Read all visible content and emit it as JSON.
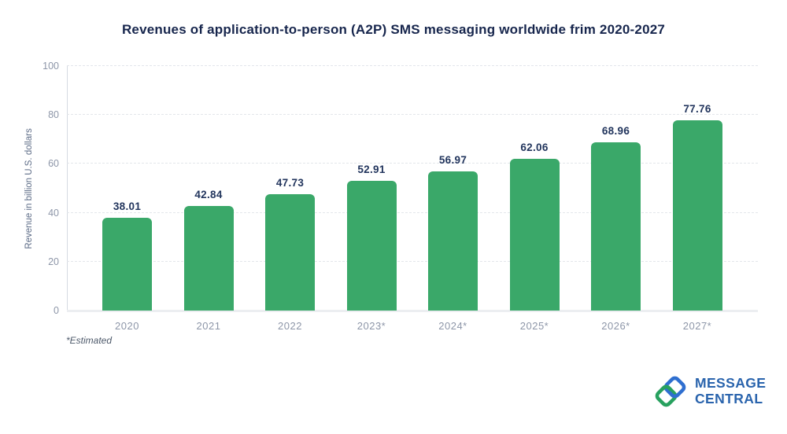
{
  "chart_data": {
    "type": "bar",
    "title": "Revenues of application-to-person (A2P) SMS messaging worldwide frim 2020-2027",
    "categories": [
      "2020",
      "2021",
      "2022",
      "2023*",
      "2024*",
      "2025*",
      "2026*",
      "2027*"
    ],
    "values": [
      38.01,
      42.84,
      47.73,
      52.91,
      56.97,
      62.06,
      68.96,
      77.76
    ],
    "xlabel": "",
    "ylabel": "Revenue in billion U.S. dollars",
    "ylim": [
      0,
      100
    ],
    "yticks": [
      0,
      20,
      40,
      60,
      80,
      100
    ],
    "grid": "horizontal-dashed",
    "legend": "none",
    "bar_color": "#3aa869",
    "value_label_color": "#22355d"
  },
  "footnote": "*Estimated",
  "logo": {
    "line1": "MESSAGE",
    "line2": "CENTRAL",
    "text_color": "#2a64ad",
    "mark_blue": "#2f6fd0",
    "mark_green": "#28a15f"
  }
}
